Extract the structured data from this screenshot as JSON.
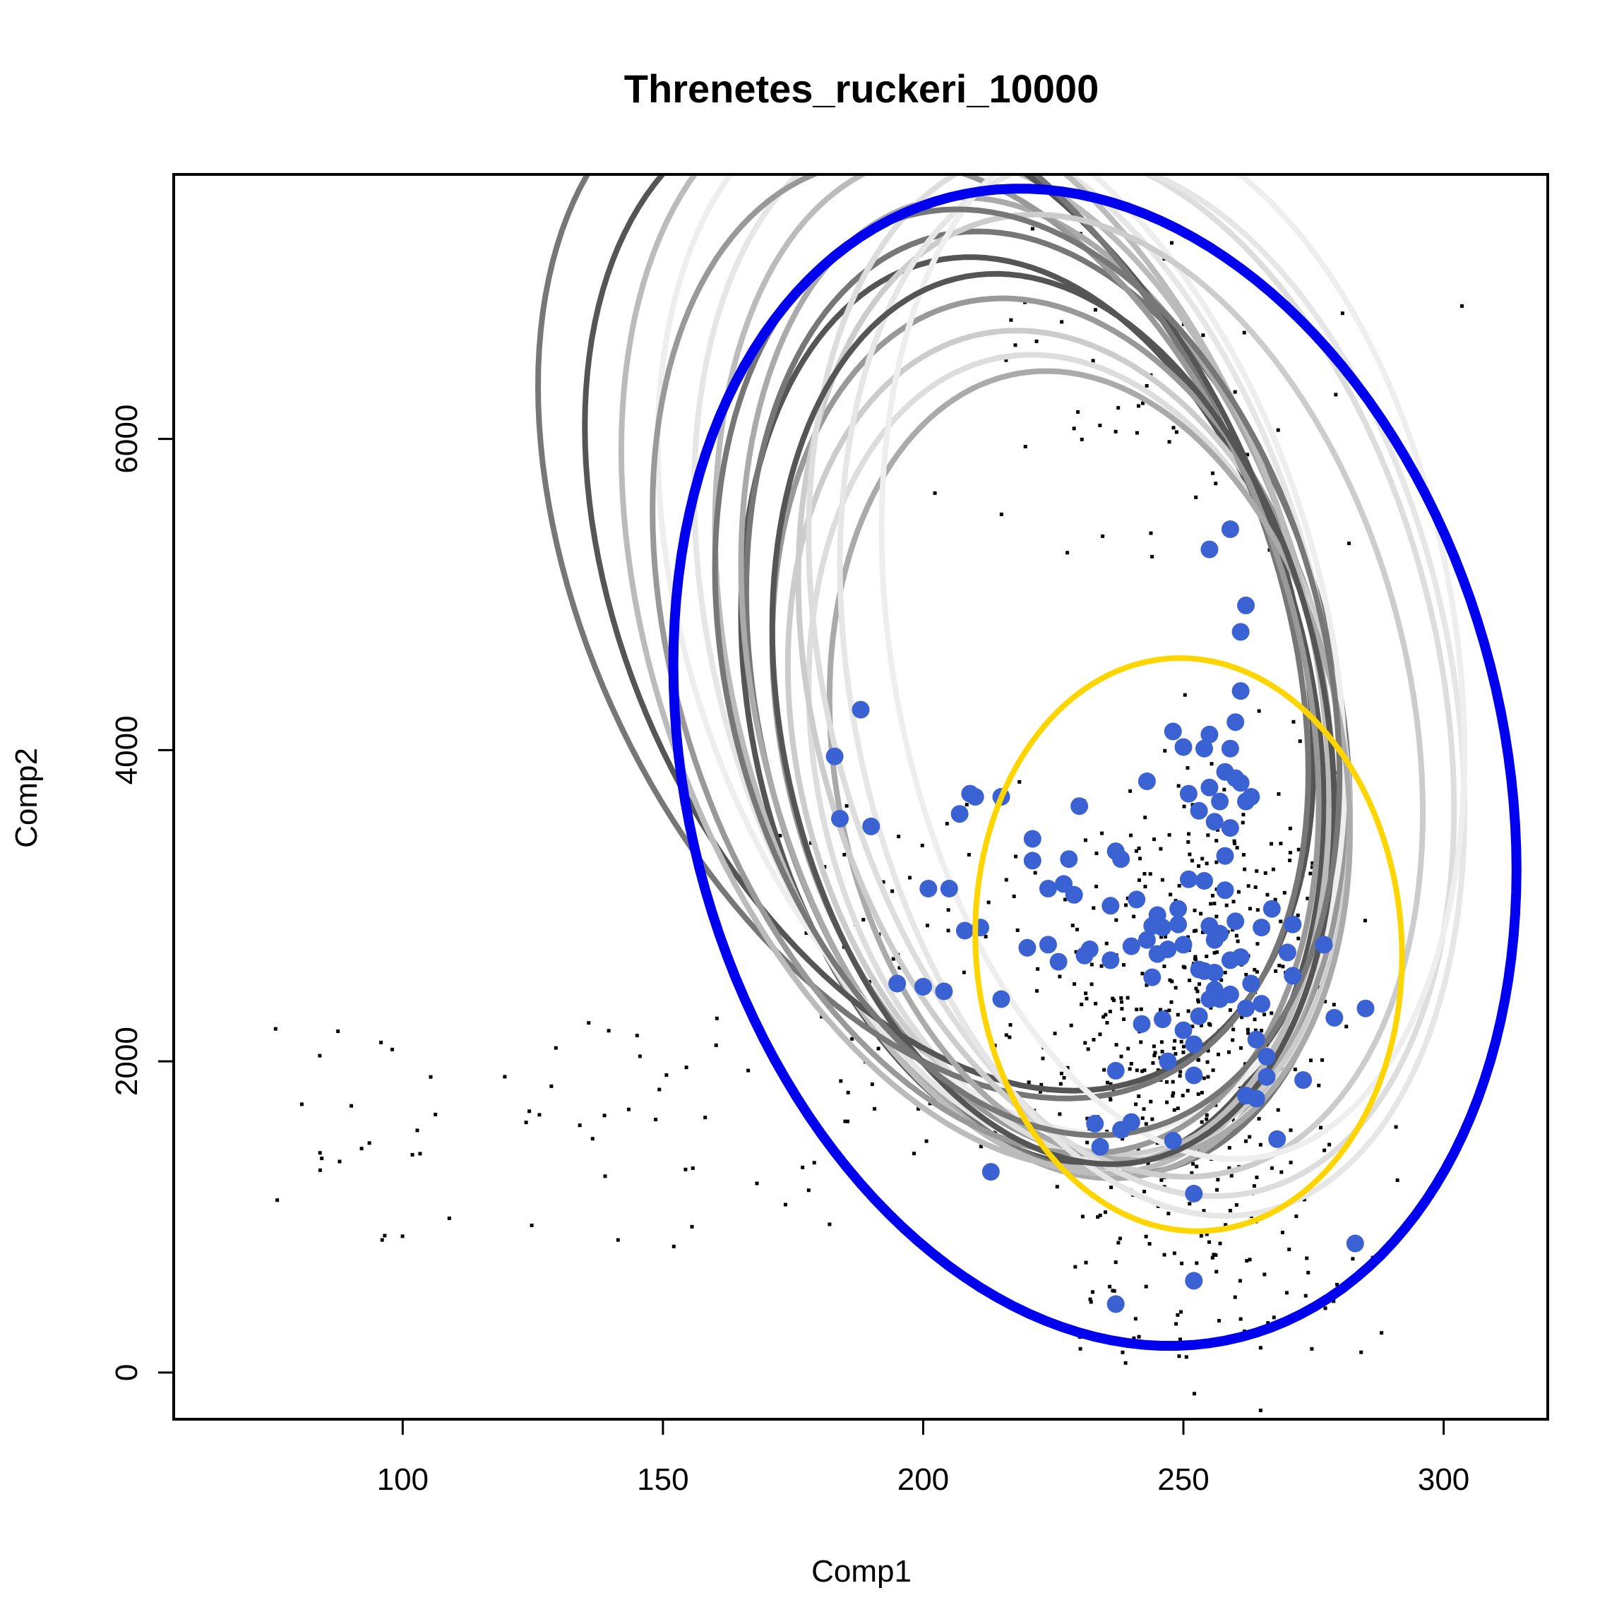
{
  "chart_data": {
    "type": "scatter",
    "title": "Threnetes_ruckeri_10000",
    "xlabel": "Comp1",
    "ylabel": "Comp2",
    "xlim": [
      56,
      320
    ],
    "ylim": [
      -300,
      7700
    ],
    "x_ticks": [
      100,
      150,
      200,
      250,
      300
    ],
    "y_ticks": [
      0,
      2000,
      4000,
      6000
    ],
    "x_tick_labels": [
      "100",
      "150",
      "200",
      "250",
      "300"
    ],
    "y_tick_labels": [
      "0",
      "2000",
      "4000",
      "6000"
    ],
    "grid": false,
    "legend": "none",
    "colors": {
      "points": "#3a62d3",
      "background_points": "#000000",
      "highlight_ellipse": "#0000ee",
      "inner_ellipse": "#ffd500",
      "gray_ellipses": [
        "#555555",
        "#777777",
        "#999999",
        "#aaaaaa",
        "#bbbbbb",
        "#cccccc",
        "#dddddd",
        "#e6e6e6",
        "#eeeeee"
      ]
    },
    "series": [
      {
        "kind": "points",
        "x": [
          188,
          183,
          184,
          190,
          195,
          200,
          201,
          204,
          205,
          207,
          208,
          209,
          210,
          211,
          213,
          215,
          215,
          220,
          221,
          221,
          224,
          224,
          226,
          227,
          228,
          229,
          230,
          231,
          232,
          233,
          234,
          236,
          236,
          237,
          237,
          238,
          238,
          240,
          240,
          241,
          242,
          243,
          243,
          244,
          244,
          245,
          245,
          246,
          246,
          247,
          247,
          248,
          248,
          249,
          249,
          250,
          250,
          250,
          251,
          251,
          252,
          252,
          252,
          253,
          253,
          253,
          254,
          254,
          254,
          255,
          255,
          255,
          255,
          256,
          256,
          256,
          257,
          257,
          257,
          258,
          258,
          258,
          259,
          259,
          259,
          259,
          260,
          260,
          260,
          261,
          261,
          261,
          262,
          262,
          262,
          263,
          263,
          264,
          264,
          265,
          265,
          266,
          266,
          267,
          268,
          270,
          271,
          271,
          273,
          277,
          279,
          285,
          255,
          261,
          262,
          256,
          259,
          252,
          237,
          283
        ],
        "y": [
          4260,
          3960,
          3560,
          3510,
          2500,
          2480,
          3110,
          2450,
          3110,
          3590,
          2840,
          3720,
          3700,
          2860,
          1290,
          3700,
          2400,
          2730,
          3430,
          3290,
          2750,
          3110,
          2640,
          3140,
          3300,
          3070,
          3640,
          2680,
          2720,
          1600,
          1450,
          3000,
          2650,
          3350,
          1940,
          1560,
          3300,
          2740,
          1610,
          3040,
          2240,
          2780,
          3800,
          2870,
          2540,
          2940,
          2690,
          2860,
          2270,
          2720,
          2000,
          4120,
          1490,
          2980,
          2880,
          2200,
          2750,
          4020,
          3720,
          3170,
          2110,
          1150,
          1910,
          3610,
          2590,
          2290,
          4010,
          3160,
          2580,
          4100,
          3760,
          2870,
          2400,
          3540,
          2780,
          2570,
          3670,
          2400,
          2820,
          3320,
          3100,
          3860,
          4010,
          3500,
          2650,
          2430,
          4180,
          3820,
          2900,
          4380,
          3790,
          2670,
          3670,
          2340,
          1780,
          3700,
          2500,
          2140,
          1760,
          2370,
          2860,
          2030,
          1900,
          2980,
          1500,
          2700,
          2550,
          2880,
          1880,
          2750,
          2280,
          2340,
          5290,
          4760,
          4930,
          2460,
          5420,
          590,
          440,
          830
        ]
      }
    ]
  }
}
